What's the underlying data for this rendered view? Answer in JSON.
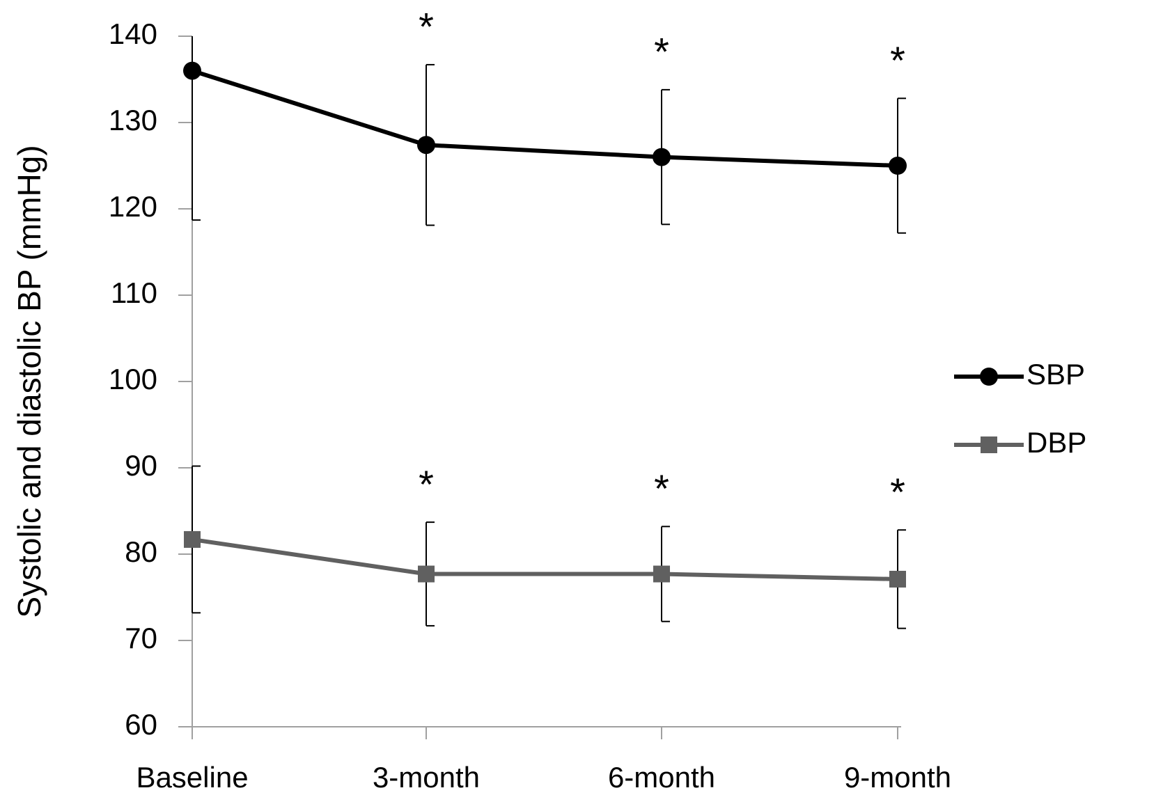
{
  "chart_data": {
    "type": "line",
    "y_label": "Systolic and diastolic BP (mmHg)",
    "categories": [
      "Baseline",
      "3-month",
      "6-month",
      "9-month"
    ],
    "ylim": [
      60,
      140
    ],
    "yticks": [
      60,
      70,
      80,
      90,
      100,
      110,
      120,
      130,
      140
    ],
    "grid": false,
    "legend": "right",
    "series": [
      {
        "name": "SBP",
        "color": "#000000",
        "marker": "circle",
        "values": [
          136,
          127.4,
          126,
          125
        ],
        "errors": [
          17.3,
          9.3,
          7.8,
          7.8
        ],
        "annotations": [
          null,
          "*",
          "*",
          "*"
        ]
      },
      {
        "name": "DBP",
        "color": "#606060",
        "marker": "square",
        "values": [
          81.7,
          77.7,
          77.7,
          77.1
        ],
        "errors": [
          8.5,
          6,
          5.5,
          5.7
        ],
        "annotations": [
          null,
          "*",
          "*",
          "*"
        ]
      }
    ]
  }
}
